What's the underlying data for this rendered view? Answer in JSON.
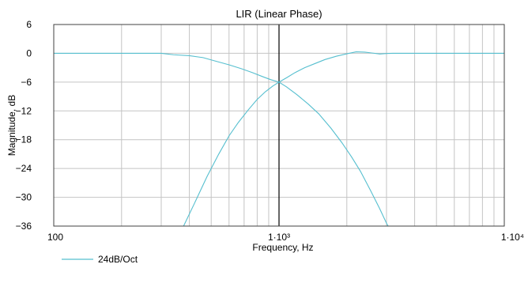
{
  "chart_data": {
    "type": "line",
    "title": "LIR (Linear Phase)",
    "xlabel": "Frequency, Hz",
    "ylabel": "Magnitude, dB",
    "xscale": "log",
    "xlim": [
      100,
      10000
    ],
    "ylim": [
      -36,
      6
    ],
    "grid": true,
    "x_ticks": [
      {
        "value": 100,
        "label": "100"
      },
      {
        "value": 1000,
        "label": "1·10³"
      },
      {
        "value": 10000,
        "label": "1·10⁴"
      }
    ],
    "y_ticks": [
      6,
      0,
      -6,
      -12,
      -18,
      -24,
      -30,
      -36
    ],
    "crossover_marker_hz": 1000,
    "legend": {
      "position": "bottom-left",
      "entries": [
        "24dB/Oct"
      ]
    },
    "series": [
      {
        "name": "24dB/Oct",
        "color": "#56bfcf",
        "points": [
          [
            100,
            0
          ],
          [
            200,
            0
          ],
          [
            300,
            0
          ],
          [
            340,
            -0.3
          ],
          [
            400,
            -0.5
          ],
          [
            460,
            -0.9
          ],
          [
            520,
            -1.6
          ],
          [
            600,
            -2.4
          ],
          [
            680,
            -3.2
          ],
          [
            760,
            -4.0
          ],
          [
            850,
            -4.9
          ],
          [
            920,
            -5.5
          ],
          [
            1000,
            -6.0
          ],
          [
            1080,
            -7.0
          ],
          [
            1200,
            -8.6
          ],
          [
            1350,
            -10.6
          ],
          [
            1500,
            -12.6
          ],
          [
            1700,
            -15.6
          ],
          [
            1900,
            -18.6
          ],
          [
            2100,
            -21.6
          ],
          [
            2300,
            -24.6
          ],
          [
            2550,
            -28.6
          ],
          [
            2800,
            -32.4
          ],
          [
            3000,
            -35.4
          ],
          [
            3050,
            -36
          ]
        ]
      },
      {
        "name": "",
        "color": "#56bfcf",
        "points": [
          [
            377,
            -36
          ],
          [
            420,
            -31.4
          ],
          [
            480,
            -25.6
          ],
          [
            540,
            -21.0
          ],
          [
            600,
            -17.2
          ],
          [
            660,
            -14.4
          ],
          [
            730,
            -11.8
          ],
          [
            800,
            -9.6
          ],
          [
            870,
            -8.0
          ],
          [
            940,
            -6.8
          ],
          [
            1000,
            -6.0
          ],
          [
            1080,
            -5.1
          ],
          [
            1180,
            -4.0
          ],
          [
            1300,
            -3.0
          ],
          [
            1450,
            -2.1
          ],
          [
            1600,
            -1.3
          ],
          [
            1800,
            -0.6
          ],
          [
            2000,
            -0.1
          ],
          [
            2200,
            0.3
          ],
          [
            2400,
            0.25
          ],
          [
            2600,
            0.05
          ],
          [
            2800,
            -0.15
          ],
          [
            3000,
            -0.05
          ],
          [
            3200,
            0
          ],
          [
            4000,
            0
          ],
          [
            10000,
            0
          ]
        ]
      }
    ]
  }
}
